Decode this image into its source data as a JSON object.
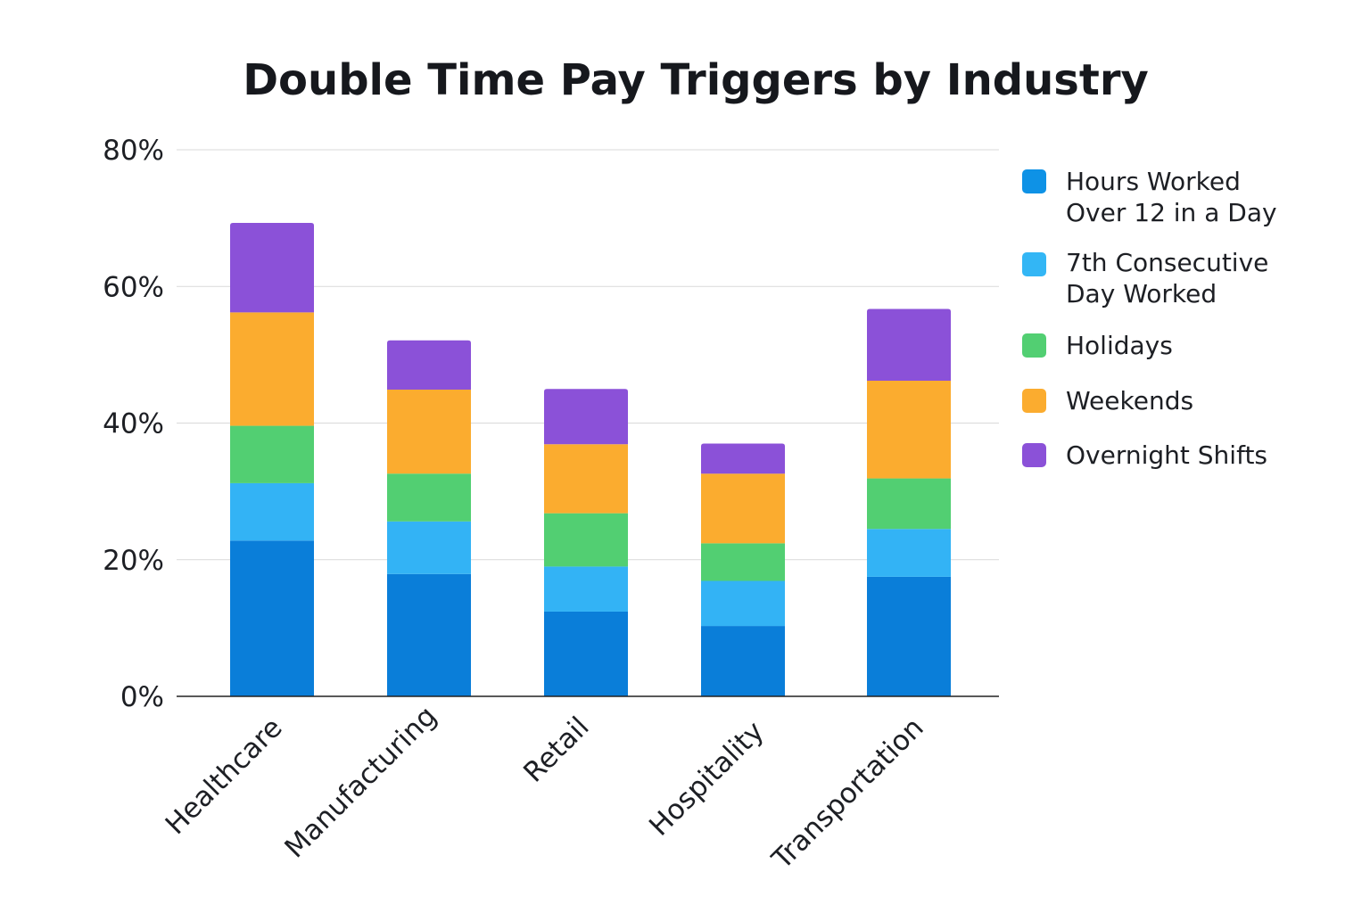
{
  "chart_data": {
    "type": "bar",
    "stacked": true,
    "title": "Double Time Pay Triggers by Industry",
    "xlabel": "",
    "ylabel": "",
    "ylim": [
      0,
      80
    ],
    "y_ticks": [
      0,
      20,
      40,
      60,
      80
    ],
    "y_tick_labels": [
      "0%",
      "20%",
      "40%",
      "60%",
      "80%"
    ],
    "grid": true,
    "legend_position": "right",
    "categories": [
      "Healthcare",
      "Manufacturing",
      "Retail",
      "Hospitality",
      "Transportation"
    ],
    "series": [
      {
        "name": "Hours Worked Over 12 in a Day",
        "legend_lines": [
          "Hours Worked",
          "Over 12 in a Day"
        ],
        "color": "#0a7ed9",
        "legend_color": "#0e92e6",
        "values": [
          22.8,
          17.9,
          12.4,
          10.3,
          17.5
        ]
      },
      {
        "name": "7th Consecutive Day Worked",
        "legend_lines": [
          "7th Consecutive",
          "Day Worked"
        ],
        "color": "#33b3f5",
        "legend_color": "#33b6f5",
        "values": [
          8.4,
          7.7,
          6.6,
          6.6,
          7.0
        ]
      },
      {
        "name": "Holidays",
        "legend_lines": [
          "Holidays"
        ],
        "color": "#52cf72",
        "legend_color": "#52cf72",
        "values": [
          8.4,
          7.0,
          7.8,
          5.5,
          7.4
        ]
      },
      {
        "name": "Weekends",
        "legend_lines": [
          "Weekends"
        ],
        "color": "#fbac2f",
        "legend_color": "#fbac2f",
        "values": [
          16.6,
          12.3,
          10.1,
          10.2,
          14.3
        ]
      },
      {
        "name": "Overnight Shifts",
        "legend_lines": [
          "Overnight Shifts"
        ],
        "color": "#8b51d8",
        "legend_color": "#8b51d8",
        "values": [
          13.1,
          7.2,
          8.1,
          4.4,
          10.5
        ]
      }
    ]
  }
}
